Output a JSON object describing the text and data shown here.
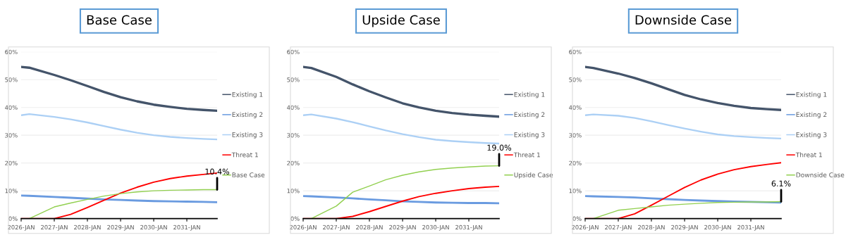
{
  "chart_data": [
    {
      "type": "line",
      "title": "Base Case",
      "x": [
        "2026-01",
        "2026-04",
        "2027-01",
        "2027-07",
        "2028-01",
        "2028-07",
        "2029-01",
        "2029-07",
        "2030-01",
        "2030-07",
        "2031-01",
        "2031-07",
        "2031-12"
      ],
      "series": [
        {
          "name": "Existing 1",
          "color": "#44546a",
          "values": [
            54.6,
            54.3,
            51.7,
            49.8,
            47.7,
            45.6,
            43.7,
            42.2,
            41.0,
            40.2,
            39.5,
            39.1,
            38.8
          ]
        },
        {
          "name": "Existing 2",
          "color": "#6a9be0",
          "values": [
            8.3,
            8.2,
            7.8,
            7.5,
            7.2,
            6.9,
            6.7,
            6.5,
            6.3,
            6.2,
            6.1,
            6.0,
            5.9
          ]
        },
        {
          "name": "Existing 3",
          "color": "#acd0f5",
          "values": [
            37.2,
            37.6,
            36.6,
            35.7,
            34.6,
            33.3,
            32.0,
            30.9,
            30.0,
            29.4,
            29.0,
            28.7,
            28.5
          ]
        },
        {
          "name": "Threat 1",
          "color": "#ff0000",
          "values": [
            0,
            0,
            0,
            1.5,
            4.0,
            6.6,
            9.2,
            11.3,
            13.1,
            14.4,
            15.3,
            15.9,
            16.4
          ]
        },
        {
          "name": "Base Case",
          "color": "#92d050",
          "values": [
            0,
            0,
            4.2,
            5.6,
            6.9,
            8.1,
            9.0,
            9.6,
            10.0,
            10.2,
            10.3,
            10.4,
            10.4
          ]
        }
      ],
      "xlim": [
        "2026-01",
        "2031-12"
      ],
      "xticks": [
        {
          "value": "2026-01",
          "label": "2026-JAN"
        },
        {
          "value": "2027-01",
          "label": "2027-JAN"
        },
        {
          "value": "2028-01",
          "label": "2028-JAN"
        },
        {
          "value": "2029-01",
          "label": "2029-JAN"
        },
        {
          "value": "2030-01",
          "label": "2030-JAN"
        },
        {
          "value": "2031-01",
          "label": "2031-JAN"
        }
      ],
      "ylim": [
        0,
        60
      ],
      "yticks": [
        {
          "value": 0,
          "label": "0%"
        },
        {
          "value": 10,
          "label": "10%"
        },
        {
          "value": 20,
          "label": "20%"
        },
        {
          "value": 30,
          "label": "30%"
        },
        {
          "value": 40,
          "label": "40%"
        },
        {
          "value": 50,
          "label": "50%"
        },
        {
          "value": 60,
          "label": "60%"
        }
      ],
      "grid": "y",
      "legend": "right",
      "marker": "none",
      "line_style": "solid",
      "annotations": [
        {
          "text": "10.4%",
          "x": "2031-12",
          "y": 10.4
        }
      ]
    },
    {
      "type": "line",
      "title": "Upside Case",
      "x": [
        "2026-01",
        "2026-04",
        "2027-01",
        "2027-07",
        "2028-01",
        "2028-07",
        "2029-01",
        "2029-07",
        "2030-01",
        "2030-07",
        "2031-01",
        "2031-07",
        "2031-12"
      ],
      "series": [
        {
          "name": "Existing 1",
          "color": "#44546a",
          "values": [
            54.6,
            54.2,
            51.0,
            48.3,
            45.8,
            43.6,
            41.5,
            40.0,
            38.8,
            38.0,
            37.4,
            37.0,
            36.7
          ]
        },
        {
          "name": "Existing 2",
          "color": "#6a9be0",
          "values": [
            8.1,
            8.0,
            7.6,
            7.3,
            6.9,
            6.6,
            6.2,
            6.0,
            5.8,
            5.7,
            5.6,
            5.6,
            5.5
          ]
        },
        {
          "name": "Existing 3",
          "color": "#acd0f5",
          "values": [
            37.2,
            37.5,
            36.0,
            34.7,
            33.2,
            31.7,
            30.4,
            29.3,
            28.4,
            27.9,
            27.5,
            27.2,
            27.0
          ]
        },
        {
          "name": "Threat 1",
          "color": "#ff0000",
          "values": [
            0,
            0,
            0,
            0.8,
            2.5,
            4.4,
            6.3,
            7.9,
            9.1,
            10.0,
            10.8,
            11.3,
            11.6
          ]
        },
        {
          "name": "Upside Case",
          "color": "#92d050",
          "values": [
            0,
            0,
            4.5,
            9.5,
            11.7,
            14.0,
            15.6,
            16.8,
            17.7,
            18.2,
            18.6,
            18.9,
            19.0
          ]
        }
      ],
      "xlim": [
        "2026-01",
        "2031-12"
      ],
      "xticks": [
        {
          "value": "2026-01",
          "label": "2026-JAN"
        },
        {
          "value": "2027-01",
          "label": "2027-JAN"
        },
        {
          "value": "2028-01",
          "label": "2028-JAN"
        },
        {
          "value": "2029-01",
          "label": "2029-JAN"
        },
        {
          "value": "2030-01",
          "label": "2030-JAN"
        },
        {
          "value": "2031-01",
          "label": "2031-JAN"
        }
      ],
      "ylim": [
        0,
        60
      ],
      "yticks": [
        {
          "value": 0,
          "label": "0%"
        },
        {
          "value": 10,
          "label": "10%"
        },
        {
          "value": 20,
          "label": "20%"
        },
        {
          "value": 30,
          "label": "30%"
        },
        {
          "value": 40,
          "label": "40%"
        },
        {
          "value": 50,
          "label": "50%"
        },
        {
          "value": 60,
          "label": "60%"
        }
      ],
      "grid": "y",
      "legend": "right",
      "marker": "none",
      "line_style": "solid",
      "annotations": [
        {
          "text": "19.0%",
          "x": "2031-12",
          "y": 19.0
        }
      ]
    },
    {
      "type": "line",
      "title": "Downside Case",
      "x": [
        "2026-01",
        "2026-04",
        "2027-01",
        "2027-07",
        "2028-01",
        "2028-07",
        "2029-01",
        "2029-07",
        "2030-01",
        "2030-07",
        "2031-01",
        "2031-07",
        "2031-12"
      ],
      "series": [
        {
          "name": "Existing 1",
          "color": "#44546a",
          "values": [
            54.6,
            54.2,
            52.2,
            50.6,
            48.7,
            46.6,
            44.5,
            42.9,
            41.6,
            40.6,
            39.8,
            39.4,
            39.1
          ]
        },
        {
          "name": "Existing 2",
          "color": "#6a9be0",
          "values": [
            8.1,
            8.0,
            7.8,
            7.6,
            7.3,
            7.0,
            6.7,
            6.5,
            6.3,
            6.1,
            6.0,
            5.9,
            5.8
          ]
        },
        {
          "name": "Existing 3",
          "color": "#acd0f5",
          "values": [
            37.2,
            37.5,
            37.0,
            36.2,
            35.0,
            33.7,
            32.4,
            31.3,
            30.3,
            29.7,
            29.3,
            29.0,
            28.8
          ]
        },
        {
          "name": "Threat 1",
          "color": "#ff0000",
          "values": [
            0,
            0,
            0,
            1.7,
            4.8,
            8.0,
            11.2,
            13.9,
            16.0,
            17.6,
            18.7,
            19.5,
            20.1
          ]
        },
        {
          "name": "Downside Case",
          "color": "#92d050",
          "values": [
            0,
            0,
            3.0,
            3.6,
            4.2,
            4.8,
            5.2,
            5.5,
            5.8,
            5.9,
            6.0,
            6.0,
            6.1
          ]
        }
      ],
      "xlim": [
        "2026-01",
        "2031-12"
      ],
      "xticks": [
        {
          "value": "2026-01",
          "label": "2026-JAN"
        },
        {
          "value": "2027-01",
          "label": "2027-JAN"
        },
        {
          "value": "2028-01",
          "label": "2028-JAN"
        },
        {
          "value": "2029-01",
          "label": "2029-JAN"
        },
        {
          "value": "2030-01",
          "label": "2030-JAN"
        },
        {
          "value": "2031-01",
          "label": "2031-JAN"
        }
      ],
      "ylim": [
        0,
        60
      ],
      "yticks": [
        {
          "value": 0,
          "label": "0%"
        },
        {
          "value": 10,
          "label": "10%"
        },
        {
          "value": 20,
          "label": "20%"
        },
        {
          "value": 30,
          "label": "30%"
        },
        {
          "value": 40,
          "label": "40%"
        },
        {
          "value": 50,
          "label": "50%"
        },
        {
          "value": 60,
          "label": "60%"
        }
      ],
      "grid": "y",
      "legend": "right",
      "marker": "none",
      "line_style": "solid",
      "annotations": [
        {
          "text": "6.1%",
          "x": "2031-12",
          "y": 6.1
        }
      ]
    }
  ]
}
